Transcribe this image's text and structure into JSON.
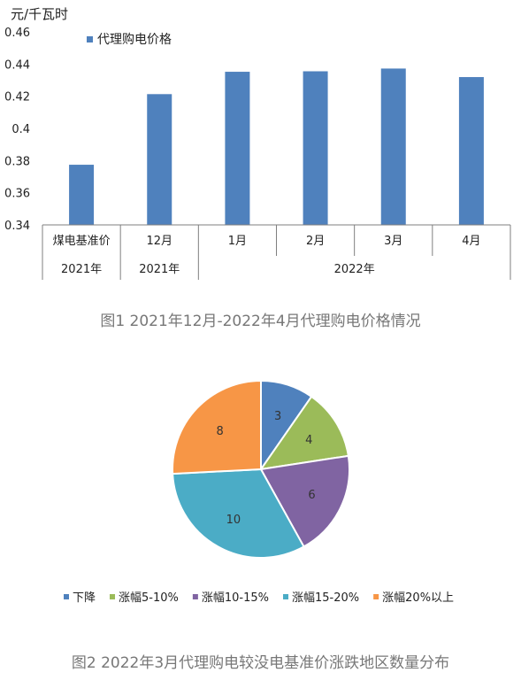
{
  "figure1": {
    "caption": "图1 2021年12月-2022年4月代理购电价格情况",
    "chart_data": {
      "type": "bar",
      "ylabel": "元/千瓦时",
      "ylim": [
        0.34,
        0.46
      ],
      "yticks": [
        "0.34",
        "0.36",
        "0.38",
        "0.4",
        "0.42",
        "0.44",
        "0.46"
      ],
      "categories": [
        "煤电基准价",
        "12月",
        "1月",
        "2月",
        "3月",
        "4月"
      ],
      "group_labels": [
        {
          "label": "2021年",
          "span": [
            0,
            0
          ]
        },
        {
          "label": "2021年",
          "span": [
            1,
            1
          ]
        },
        {
          "label": "2022年",
          "span": [
            2,
            5
          ]
        }
      ],
      "series": [
        {
          "name": "代理购电价格",
          "values": [
            0.3774,
            0.4213,
            0.4352,
            0.4355,
            0.4372,
            0.4319
          ]
        }
      ],
      "legend": "top-left",
      "grid": false,
      "color": "#4f81bd"
    }
  },
  "figure2": {
    "caption": "图2 2022年3月代理购电较没电基准价涨跌地区数量分布",
    "chart_data": {
      "type": "pie",
      "labels": [
        "下降",
        "涨幅5-10%",
        "涨幅10-15%",
        "涨幅15-20%",
        "涨幅20%以上"
      ],
      "values": [
        3,
        4,
        6,
        10,
        8
      ],
      "value_labels": [
        "3",
        "4",
        "6",
        "10",
        "8"
      ],
      "colors": [
        "#4f81bd",
        "#9bbb59",
        "#8064a2",
        "#4bacc6",
        "#f79646"
      ],
      "legend": "bottom",
      "start": "top, clockwise"
    }
  }
}
